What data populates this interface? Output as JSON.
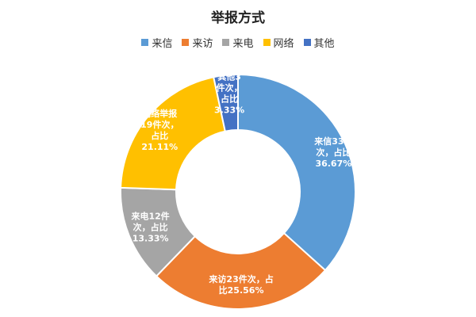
{
  "chart_data": {
    "type": "pie",
    "title": "举报方式",
    "legend_position": "top",
    "categories": [
      "来信",
      "来访",
      "来电",
      "网络",
      "其他"
    ],
    "values": [
      33,
      23,
      12,
      19,
      3
    ],
    "percentages": [
      "36.67%",
      "25.56%",
      "13.33%",
      "21.11%",
      "3.33%"
    ],
    "colors": [
      "#5B9BD5",
      "#ED7D31",
      "#A5A5A5",
      "#FFC000",
      "#4472C4"
    ],
    "labels": [
      [
        "来信33件",
        "次，占比",
        "36.67%"
      ],
      [
        "来访23件次，占",
        "比25.56%"
      ],
      [
        "来电12件",
        "次，占比",
        "13.33%"
      ],
      [
        "网络举报",
        "19件次，",
        "占比",
        "21.11%"
      ],
      [
        "其他3",
        "件次，",
        "占比",
        "3.33%"
      ]
    ],
    "label_colors": [
      "#ffffff",
      "#ffffff",
      "#ffffff",
      "#ffffff",
      "#ffffff"
    ]
  }
}
